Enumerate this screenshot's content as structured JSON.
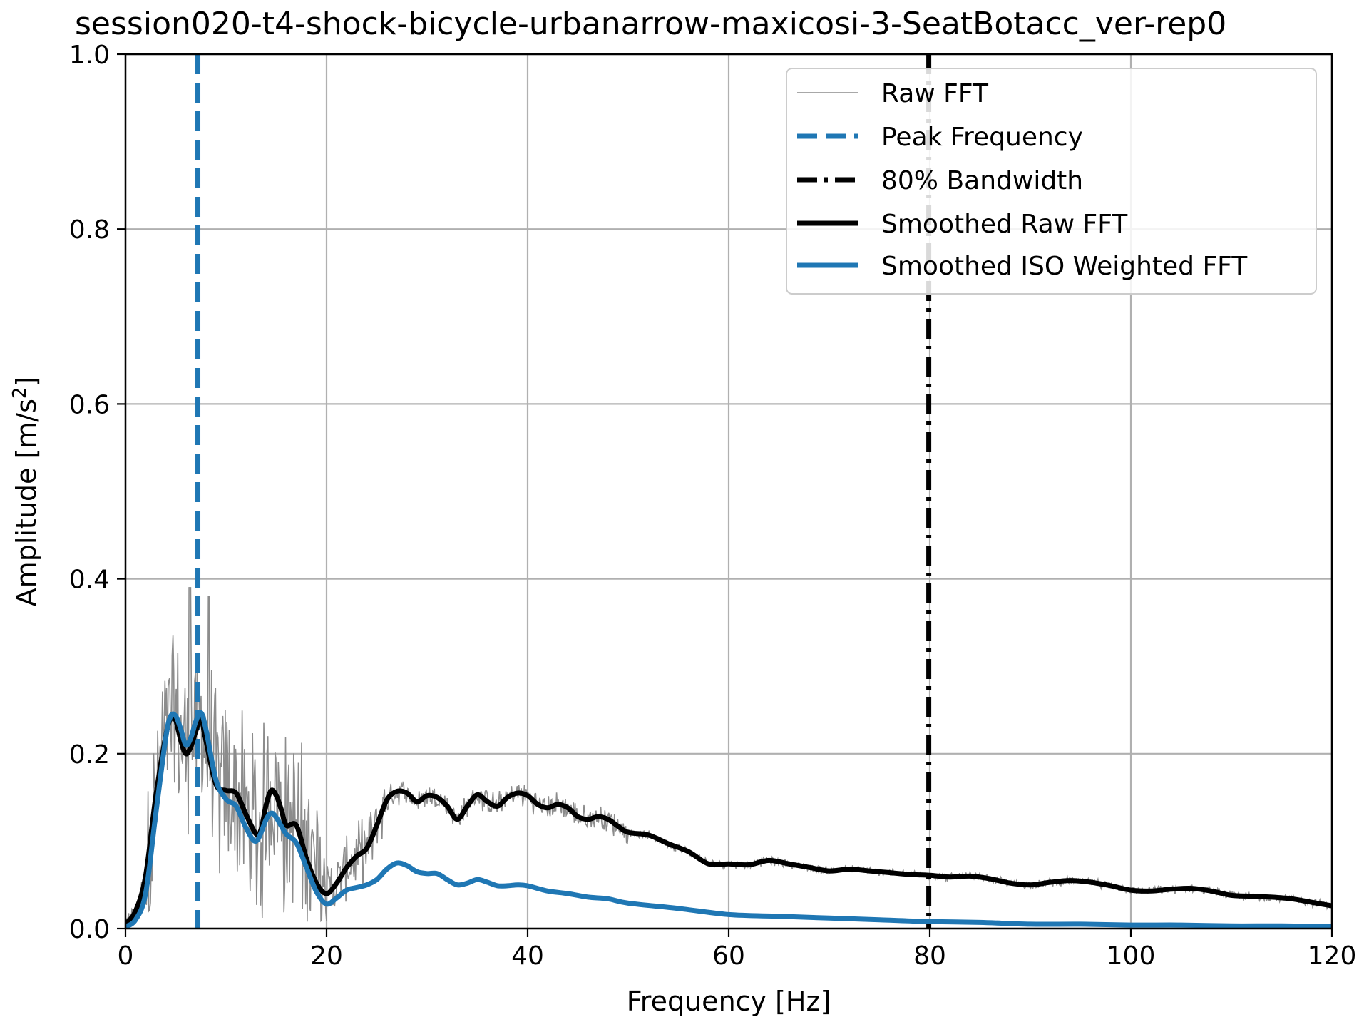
{
  "chart_data": {
    "type": "line",
    "title": "session020-t4-shock-bicycle-urbanarrow-maxicosi-3-SeatBotacc_ver-rep0",
    "xlabel": "Frequency [Hz]",
    "ylabel_main": "Amplitude [m/s",
    "ylabel_sup": "2",
    "ylabel_close": "]",
    "xlim": [
      0,
      120
    ],
    "ylim": [
      0,
      1.0
    ],
    "x_ticks": [
      "0",
      "20",
      "40",
      "60",
      "80",
      "100",
      "120"
    ],
    "x_tick_values": [
      0,
      20,
      40,
      60,
      80,
      100,
      120
    ],
    "y_ticks": [
      "0.0",
      "0.2",
      "0.4",
      "0.6",
      "0.8",
      "1.0"
    ],
    "y_tick_values": [
      0,
      0.2,
      0.4,
      0.6,
      0.8,
      1.0
    ],
    "grid": true,
    "legend_position": "top-right",
    "colors": {
      "raw": "#8c8c8c",
      "peak": "#1f77b4",
      "bandwidth": "#000000",
      "smoothed_raw": "#000000",
      "smoothed_iso": "#1f77b4",
      "grid": "#b0b0b0"
    },
    "legend": [
      {
        "label": "Raw FFT",
        "key": "raw"
      },
      {
        "label": "Peak Frequency",
        "key": "peak"
      },
      {
        "label": "80% Bandwidth",
        "key": "bandwidth"
      },
      {
        "label": "Smoothed Raw FFT",
        "key": "smoothed_raw"
      },
      {
        "label": "Smoothed ISO Weighted FFT",
        "key": "smoothed_iso"
      }
    ],
    "peak_frequency": 7.2,
    "bandwidth_80": 79.9,
    "series": [
      {
        "key": "smoothed_raw",
        "x": [
          0,
          1,
          2,
          3,
          4,
          4.5,
          5,
          5.5,
          6,
          6.5,
          7,
          7.5,
          8,
          9,
          10,
          11,
          12,
          13,
          13.5,
          14,
          14.5,
          15,
          15.5,
          16,
          17,
          18,
          19,
          20,
          21,
          22,
          23,
          24,
          25,
          26,
          27,
          28,
          29,
          30,
          31,
          32,
          33,
          34,
          35,
          36,
          37,
          38,
          39,
          40,
          41,
          42,
          43,
          44,
          45,
          46,
          47,
          48,
          49,
          50,
          52,
          54,
          56,
          58,
          60,
          62,
          64,
          66,
          68,
          70,
          72,
          74,
          76,
          78,
          80,
          82,
          84,
          86,
          88,
          90,
          92,
          94,
          96,
          98,
          100,
          102,
          104,
          106,
          108,
          110,
          112,
          114,
          116,
          118,
          120
        ],
        "y": [
          0.005,
          0.02,
          0.06,
          0.15,
          0.22,
          0.24,
          0.238,
          0.215,
          0.2,
          0.208,
          0.226,
          0.24,
          0.215,
          0.165,
          0.158,
          0.155,
          0.13,
          0.108,
          0.114,
          0.142,
          0.158,
          0.152,
          0.136,
          0.118,
          0.118,
          0.08,
          0.052,
          0.04,
          0.052,
          0.07,
          0.083,
          0.092,
          0.118,
          0.147,
          0.157,
          0.155,
          0.145,
          0.152,
          0.15,
          0.14,
          0.125,
          0.14,
          0.153,
          0.145,
          0.14,
          0.15,
          0.155,
          0.152,
          0.142,
          0.138,
          0.142,
          0.138,
          0.128,
          0.125,
          0.128,
          0.125,
          0.117,
          0.11,
          0.107,
          0.097,
          0.088,
          0.074,
          0.074,
          0.073,
          0.078,
          0.074,
          0.07,
          0.066,
          0.068,
          0.066,
          0.064,
          0.062,
          0.061,
          0.059,
          0.06,
          0.057,
          0.052,
          0.05,
          0.053,
          0.055,
          0.053,
          0.049,
          0.044,
          0.043,
          0.045,
          0.046,
          0.043,
          0.038,
          0.037,
          0.036,
          0.034,
          0.03,
          0.026
        ]
      },
      {
        "key": "smoothed_iso",
        "x": [
          0,
          1,
          2,
          3,
          4,
          4.5,
          5,
          5.5,
          6,
          6.5,
          7,
          7.5,
          8,
          9,
          10,
          11,
          12,
          13,
          14,
          14.5,
          15,
          16,
          17,
          18,
          19,
          20,
          21,
          22,
          23,
          24,
          25,
          26,
          27,
          28,
          29,
          30,
          31,
          32,
          33,
          34,
          35,
          36,
          37,
          38,
          39,
          40,
          42,
          44,
          46,
          48,
          50,
          55,
          60,
          65,
          70,
          75,
          80,
          85,
          90,
          95,
          100,
          105,
          110,
          115,
          120
        ],
        "y": [
          0.002,
          0.01,
          0.04,
          0.13,
          0.218,
          0.243,
          0.243,
          0.228,
          0.21,
          0.218,
          0.237,
          0.247,
          0.228,
          0.17,
          0.148,
          0.14,
          0.115,
          0.1,
          0.125,
          0.132,
          0.127,
          0.108,
          0.098,
          0.07,
          0.042,
          0.028,
          0.035,
          0.044,
          0.047,
          0.05,
          0.056,
          0.068,
          0.075,
          0.072,
          0.065,
          0.063,
          0.063,
          0.056,
          0.05,
          0.052,
          0.056,
          0.053,
          0.049,
          0.049,
          0.05,
          0.049,
          0.043,
          0.04,
          0.036,
          0.034,
          0.029,
          0.023,
          0.016,
          0.014,
          0.012,
          0.01,
          0.008,
          0.007,
          0.005,
          0.005,
          0.004,
          0.004,
          0.003,
          0.003,
          0.002
        ]
      }
    ]
  }
}
